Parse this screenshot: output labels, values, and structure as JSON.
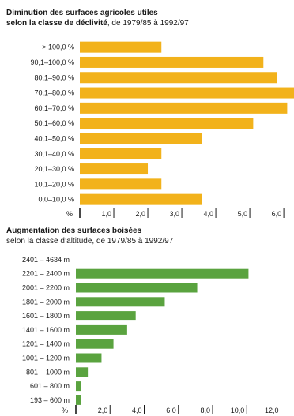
{
  "colors": {
    "chart1_bar": "#f2b21b",
    "chart2_bar": "#5aa33f",
    "axis": "#1a1a1a"
  },
  "chart_data": [
    {
      "type": "bar",
      "orientation": "horizontal",
      "title": "Diminution des surfaces agricoles utiles",
      "subtitle_bold": "selon la classe de déclivité",
      "subtitle_rest": ", de 1979/85 à 1992/97",
      "unit": "%",
      "categories": [
        "> 100,0 %",
        "90,1–100,0 %",
        "80,1–90,0  %",
        "70,1–80,0  %",
        "60,1–70,0  %",
        "50,1–60,0 %",
        "40,1–50,0  %",
        "30,1–40,0  %",
        "20,1–30,0  %",
        "10,1–20,0  %",
        "0,0–10,0  %"
      ],
      "values": [
        2.4,
        5.4,
        5.8,
        6.3,
        6.1,
        5.1,
        3.6,
        2.4,
        2.0,
        2.4,
        3.6
      ],
      "xlim": [
        0,
        6.3
      ],
      "xticks": [
        1.0,
        2.0,
        3.0,
        4.0,
        5.0,
        6.0
      ],
      "xtick_labels": [
        "1,0",
        "2,0",
        "3,0",
        "4,0",
        "5,0",
        "6,0"
      ],
      "grid": false
    },
    {
      "type": "bar",
      "orientation": "horizontal",
      "title": "Augmentation des surfaces boisées",
      "subtitle": "selon la classe d’altitude, de 1979/85 à 1992/97",
      "unit": "%",
      "categories": [
        "2401 – 4634  m",
        "2201 – 2400  m",
        "2001 – 2200  m",
        "1801 – 2000  m",
        "1601 – 1800  m",
        "1401 – 1600  m",
        "1201 – 1400  m",
        "1001 – 1200  m",
        "801 – 1000  m",
        "601 –   800  m",
        "193 –   600  m"
      ],
      "values": [
        0.0,
        10.1,
        7.1,
        5.2,
        3.5,
        3.0,
        2.2,
        1.5,
        0.7,
        0.3,
        0.3
      ],
      "xlim": [
        0,
        12.3
      ],
      "xticks": [
        2.0,
        4.0,
        6.0,
        8.0,
        10.0,
        12.0
      ],
      "xtick_labels": [
        "2,0",
        "4,0",
        "6,0",
        "8,0",
        "10,0",
        "12,0"
      ],
      "grid": false
    }
  ]
}
